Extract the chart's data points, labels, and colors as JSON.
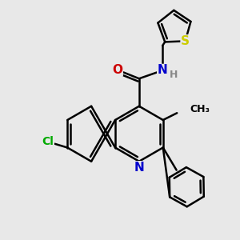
{
  "bg_color": "#e8e8e8",
  "bond_color": "#000000",
  "bond_width": 1.8,
  "atom_colors": {
    "N": "#0000cc",
    "O": "#cc0000",
    "Cl": "#00aa00",
    "S": "#cccc00",
    "H": "#888888",
    "C": "#000000"
  },
  "font_size": 10,
  "fig_bg": "#e8e8e8"
}
